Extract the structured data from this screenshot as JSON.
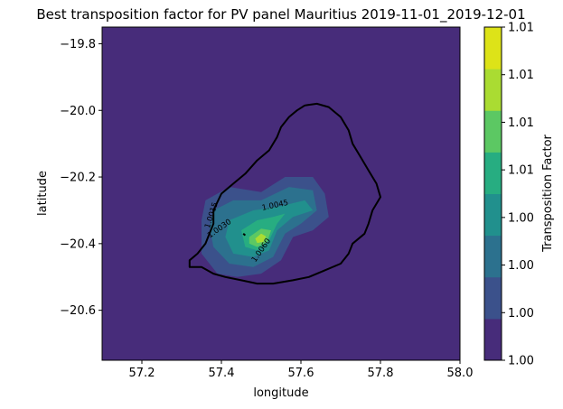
{
  "chart_data": {
    "type": "contourf",
    "title": "Best transposition factor for PV panel Mauritius 2019-11-01_2019-12-01",
    "xlabel": "longitude",
    "ylabel": "latitude",
    "xlim": [
      57.1,
      58.0
    ],
    "ylim": [
      -20.75,
      -19.75
    ],
    "x_ticks": [
      {
        "value": 57.2,
        "label": "57.2"
      },
      {
        "value": 57.4,
        "label": "57.4"
      },
      {
        "value": 57.6,
        "label": "57.6"
      },
      {
        "value": 57.8,
        "label": "57.8"
      },
      {
        "value": 58.0,
        "label": "58.0"
      }
    ],
    "y_ticks": [
      {
        "value": -19.8,
        "label": "−19.8"
      },
      {
        "value": -20.0,
        "label": "−20.0"
      },
      {
        "value": -20.2,
        "label": "−20.2"
      },
      {
        "value": -20.4,
        "label": "−20.4"
      },
      {
        "value": -20.6,
        "label": "−20.6"
      }
    ],
    "grid": false,
    "colorbar": {
      "label": "Transposition Factor",
      "tick_labels": [
        "1.00",
        "1.00",
        "1.00",
        "1.00",
        "1.01",
        "1.01",
        "1.01",
        "1.01"
      ],
      "levels": [
        1.0,
        1.0015,
        1.003,
        1.0045,
        1.006,
        1.0075,
        1.009,
        1.0105
      ],
      "colors": [
        "#472c7a",
        "#3b518b",
        "#2c718e",
        "#21908d",
        "#27ad81",
        "#5cc863",
        "#aadc32",
        "#dde318"
      ]
    },
    "contour_labels": [
      {
        "text": "1.0015",
        "lon": 57.375,
        "lat": -20.315,
        "angle": -72
      },
      {
        "text": "1.0030",
        "lon": 57.395,
        "lat": -20.355,
        "angle": -35
      },
      {
        "text": "1.0045",
        "lon": 57.535,
        "lat": -20.285,
        "angle": -12
      },
      {
        "text": "1.0060",
        "lon": 57.5,
        "lat": -20.42,
        "angle": -55
      }
    ],
    "regions": [
      {
        "level_index": 1,
        "points": [
          [
            57.36,
            -20.27
          ],
          [
            57.42,
            -20.23
          ],
          [
            57.5,
            -20.245
          ],
          [
            57.56,
            -20.2
          ],
          [
            57.63,
            -20.2
          ],
          [
            57.66,
            -20.25
          ],
          [
            57.67,
            -20.32
          ],
          [
            57.63,
            -20.36
          ],
          [
            57.58,
            -20.38
          ],
          [
            57.55,
            -20.45
          ],
          [
            57.5,
            -20.49
          ],
          [
            57.44,
            -20.5
          ],
          [
            57.39,
            -20.49
          ],
          [
            57.35,
            -20.43
          ],
          [
            57.35,
            -20.33
          ]
        ]
      },
      {
        "level_index": 2,
        "points": [
          [
            57.38,
            -20.3
          ],
          [
            57.43,
            -20.27
          ],
          [
            57.5,
            -20.27
          ],
          [
            57.57,
            -20.23
          ],
          [
            57.63,
            -20.24
          ],
          [
            57.64,
            -20.3
          ],
          [
            57.6,
            -20.34
          ],
          [
            57.56,
            -20.37
          ],
          [
            57.53,
            -20.44
          ],
          [
            57.48,
            -20.47
          ],
          [
            57.42,
            -20.46
          ],
          [
            57.38,
            -20.41
          ],
          [
            57.37,
            -20.35
          ]
        ]
      },
      {
        "level_index": 3,
        "points": [
          [
            57.42,
            -20.33
          ],
          [
            57.48,
            -20.3
          ],
          [
            57.54,
            -20.29
          ],
          [
            57.61,
            -20.27
          ],
          [
            57.63,
            -20.3
          ],
          [
            57.58,
            -20.32
          ],
          [
            57.54,
            -20.36
          ],
          [
            57.52,
            -20.42
          ],
          [
            57.48,
            -20.44
          ],
          [
            57.43,
            -20.43
          ],
          [
            57.41,
            -20.38
          ]
        ]
      },
      {
        "level_index": 4,
        "points": [
          [
            57.45,
            -20.36
          ],
          [
            57.49,
            -20.33
          ],
          [
            57.53,
            -20.32
          ],
          [
            57.56,
            -20.31
          ],
          [
            57.54,
            -20.34
          ],
          [
            57.52,
            -20.39
          ],
          [
            57.49,
            -20.42
          ],
          [
            57.46,
            -20.41
          ]
        ]
      },
      {
        "level_index": 5,
        "points": [
          [
            57.47,
            -20.38
          ],
          [
            57.5,
            -20.355
          ],
          [
            57.525,
            -20.36
          ],
          [
            57.515,
            -20.395
          ],
          [
            57.49,
            -20.41
          ],
          [
            57.47,
            -20.4
          ]
        ]
      },
      {
        "level_index": 6,
        "points": [
          [
            57.485,
            -20.385
          ],
          [
            57.5,
            -20.37
          ],
          [
            57.512,
            -20.378
          ],
          [
            57.505,
            -20.395
          ],
          [
            57.49,
            -20.398
          ]
        ]
      }
    ],
    "coastline": [
      [
        57.61,
        -19.985
      ],
      [
        57.64,
        -19.98
      ],
      [
        57.67,
        -19.99
      ],
      [
        57.7,
        -20.02
      ],
      [
        57.72,
        -20.06
      ],
      [
        57.73,
        -20.1
      ],
      [
        57.75,
        -20.14
      ],
      [
        57.77,
        -20.18
      ],
      [
        57.79,
        -20.22
      ],
      [
        57.8,
        -20.26
      ],
      [
        57.78,
        -20.3
      ],
      [
        57.77,
        -20.34
      ],
      [
        57.76,
        -20.37
      ],
      [
        57.73,
        -20.4
      ],
      [
        57.72,
        -20.43
      ],
      [
        57.7,
        -20.46
      ],
      [
        57.66,
        -20.48
      ],
      [
        57.62,
        -20.5
      ],
      [
        57.58,
        -20.51
      ],
      [
        57.53,
        -20.52
      ],
      [
        57.49,
        -20.52
      ],
      [
        57.45,
        -20.51
      ],
      [
        57.41,
        -20.5
      ],
      [
        57.38,
        -20.49
      ],
      [
        57.35,
        -20.47
      ],
      [
        57.32,
        -20.47
      ],
      [
        57.32,
        -20.45
      ],
      [
        57.34,
        -20.43
      ],
      [
        57.36,
        -20.4
      ],
      [
        57.38,
        -20.34
      ],
      [
        57.38,
        -20.3
      ],
      [
        57.4,
        -20.25
      ],
      [
        57.43,
        -20.22
      ],
      [
        57.46,
        -20.19
      ],
      [
        57.49,
        -20.15
      ],
      [
        57.52,
        -20.12
      ],
      [
        57.54,
        -20.08
      ],
      [
        57.55,
        -20.05
      ],
      [
        57.57,
        -20.02
      ],
      [
        57.59,
        -20.0
      ],
      [
        57.61,
        -19.985
      ]
    ],
    "inland_feature": [
      [
        57.455,
        -20.37
      ],
      [
        57.46,
        -20.375
      ]
    ]
  }
}
